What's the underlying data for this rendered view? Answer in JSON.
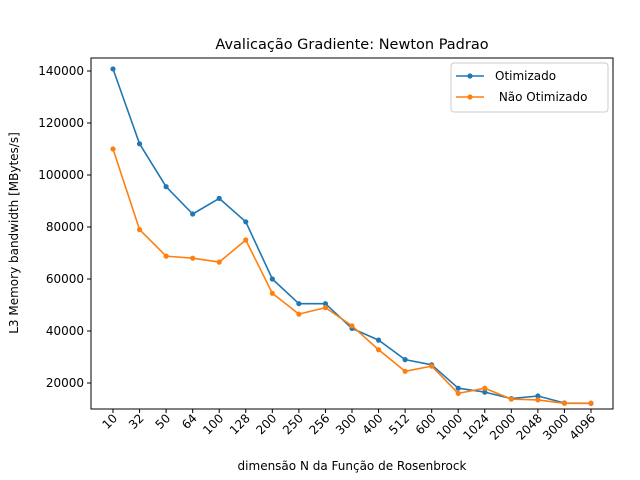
{
  "chart_data": {
    "type": "line",
    "title": "Avalicação Gradiente:  Newton Padrao",
    "xlabel": "dimensão N da Função de Rosenbrock",
    "ylabel": "L3 Memory bandwidth [MBytes/s]",
    "categories": [
      "10",
      "32",
      "50",
      "64",
      "100",
      "128",
      "200",
      "250",
      "256",
      "300",
      "400",
      "512",
      "600",
      "1000",
      "1024",
      "2000",
      "2048",
      "3000",
      "4096"
    ],
    "ylim": [
      10000,
      145000
    ],
    "yticks": [
      20000,
      40000,
      60000,
      80000,
      100000,
      120000,
      140000
    ],
    "grid": false,
    "legend_position": "top-right",
    "series": [
      {
        "name": "Otimizado",
        "color": "#1f77b4",
        "marker": "point",
        "values": [
          140800,
          112000,
          95500,
          85000,
          91000,
          82000,
          60000,
          50500,
          50500,
          41000,
          36500,
          29000,
          27000,
          18000,
          16500,
          14000,
          15000,
          12300,
          12200
        ]
      },
      {
        "name": " Não Otimizado",
        "color": "#ff7f0e",
        "marker": "point",
        "values": [
          110000,
          79000,
          68800,
          68000,
          66500,
          75000,
          54500,
          46500,
          49000,
          42000,
          32800,
          24500,
          26500,
          16000,
          18000,
          13800,
          13500,
          12200,
          12200
        ]
      }
    ]
  }
}
